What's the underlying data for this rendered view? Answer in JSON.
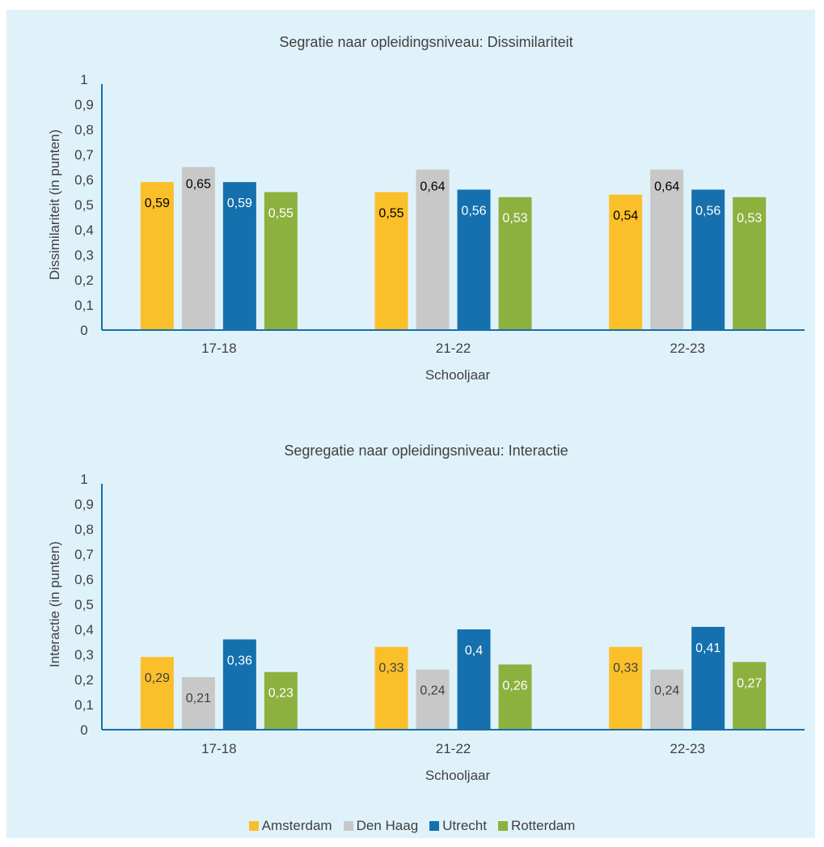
{
  "legend": [
    {
      "name": "Amsterdam",
      "color": "#fbbf2a"
    },
    {
      "name": "Den Haag",
      "color": "#c8c8c8"
    },
    {
      "name": "Utrecht",
      "color": "#1570ad"
    },
    {
      "name": "Rotterdam",
      "color": "#8db13f"
    }
  ],
  "chart_data": [
    {
      "type": "bar",
      "title": "Segratie naar opleidingsniveau: Dissimilariteit",
      "xlabel": "Schooljaar",
      "ylabel": "Dissimilariteit (in punten)",
      "ylim": [
        0,
        1
      ],
      "yticks": [
        "0",
        "0,1",
        "0,2",
        "0,3",
        "0,4",
        "0,5",
        "0,6",
        "0,7",
        "0,8",
        "0,9",
        "1"
      ],
      "categories": [
        "17-18",
        "21-22",
        "22-23"
      ],
      "series": [
        {
          "name": "Amsterdam",
          "values": [
            0.59,
            0.55,
            0.54
          ],
          "labels": [
            "0,59",
            "0,55",
            "0,54"
          ]
        },
        {
          "name": "Den Haag",
          "values": [
            0.65,
            0.64,
            0.64
          ],
          "labels": [
            "0,65",
            "0,64",
            "0,64"
          ]
        },
        {
          "name": "Utrecht",
          "values": [
            0.59,
            0.56,
            0.56
          ],
          "labels": [
            "0,59",
            "0,56",
            "0,56"
          ]
        },
        {
          "name": "Rotterdam",
          "values": [
            0.55,
            0.53,
            0.53
          ],
          "labels": [
            "0,55",
            "0,53",
            "0,53"
          ]
        }
      ]
    },
    {
      "type": "bar",
      "title": "Segregatie naar opleidingsniveau: Interactie",
      "xlabel": "Schooljaar",
      "ylabel": "Interactie (in punten)",
      "ylim": [
        0,
        1
      ],
      "yticks": [
        "0",
        "0,1",
        "0,2",
        "0,3",
        "0,4",
        "0,5",
        "0,6",
        "0,7",
        "0,8",
        "0,9",
        "1"
      ],
      "categories": [
        "17-18",
        "21-22",
        "22-23"
      ],
      "series": [
        {
          "name": "Amsterdam",
          "values": [
            0.29,
            0.33,
            0.33
          ],
          "labels": [
            "0,29",
            "0,33",
            "0,33"
          ]
        },
        {
          "name": "Den Haag",
          "values": [
            0.21,
            0.24,
            0.24
          ],
          "labels": [
            "0,21",
            "0,24",
            "0,24"
          ]
        },
        {
          "name": "Utrecht",
          "values": [
            0.36,
            0.4,
            0.41
          ],
          "labels": [
            "0,36",
            "0,4",
            "0,41"
          ]
        },
        {
          "name": "Rotterdam",
          "values": [
            0.23,
            0.26,
            0.27
          ],
          "labels": [
            "0,23",
            "0,26",
            "0,27"
          ]
        }
      ]
    }
  ]
}
